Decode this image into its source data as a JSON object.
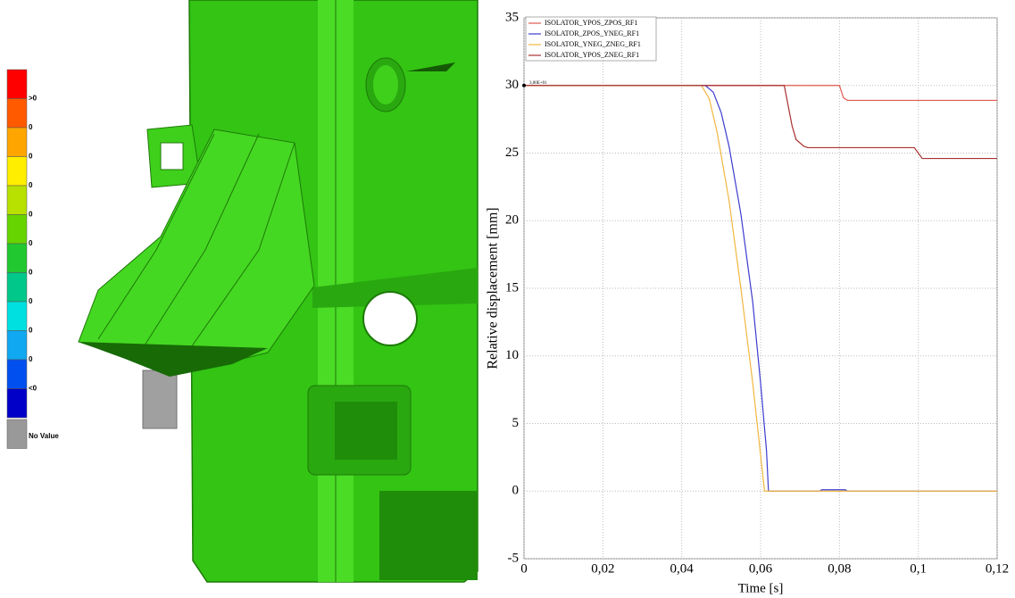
{
  "colorbar": {
    "colors": [
      "#ff0000",
      "#ff5a00",
      "#ffa500",
      "#ffee00",
      "#b8e000",
      "#66d400",
      "#22c830",
      "#00c88a",
      "#00e0e0",
      "#10a8f0",
      "#0050f0",
      "#0000c8",
      "#999999"
    ],
    "labels": [
      ">0",
      "0",
      "0",
      "0",
      "0",
      "0",
      "0",
      "0",
      "0",
      "0",
      "<0",
      "No Value"
    ]
  },
  "chart_data": {
    "type": "line",
    "xlabel": "Time [s]",
    "ylabel": "Relative displacement [mm]",
    "xlim": [
      0,
      0.12
    ],
    "ylim": [
      -5,
      35
    ],
    "xticks": [
      0,
      {
        "value": 0.02,
        "label": "0,02"
      },
      {
        "value": 0.04,
        "label": "0,04"
      },
      {
        "value": 0.06,
        "label": "0,06"
      },
      {
        "value": 0.08,
        "label": "0,08"
      },
      {
        "value": 0.1,
        "label": "0,1"
      },
      {
        "value": 0.12,
        "label": "0,12"
      }
    ],
    "yticks": [
      -5,
      0,
      5,
      10,
      15,
      20,
      25,
      30,
      35
    ],
    "grid": true,
    "legend": "top-left",
    "annotations": [
      {
        "x": 0,
        "y": 30,
        "text": "3,00E+01"
      }
    ],
    "series": [
      {
        "name": "ISOLATOR_YPOS_ZPOS_RF1",
        "color": "#e05a50",
        "x": [
          0,
          0.08,
          0.081,
          0.082,
          0.12
        ],
        "values": [
          30,
          30,
          29.1,
          28.9,
          28.9
        ]
      },
      {
        "name": "ISOLATOR_ZPOS_YNEG_RF1",
        "color": "#3c3cd0",
        "x": [
          0,
          0.046,
          0.048,
          0.05,
          0.052,
          0.055,
          0.058,
          0.06,
          0.0615,
          0.062,
          0.075,
          0.0755,
          0.0815,
          0.082,
          0.12
        ],
        "values": [
          30,
          30,
          29.5,
          28,
          25.5,
          20.5,
          14,
          8,
          3,
          0,
          0,
          0.1,
          0.1,
          0,
          0
        ]
      },
      {
        "name": "ISOLATOR_YNEG_ZNEG_RF1",
        "color": "#f2b640",
        "x": [
          0,
          0.045,
          0.047,
          0.049,
          0.052,
          0.055,
          0.058,
          0.061,
          0.12
        ],
        "values": [
          30,
          30,
          29,
          26.5,
          21.5,
          15,
          8,
          0,
          0
        ]
      },
      {
        "name": "ISOLATOR_YPOS_ZNEG_RF1",
        "color": "#a83030",
        "x": [
          0,
          0.066,
          0.067,
          0.068,
          0.069,
          0.071,
          0.072,
          0.099,
          0.1,
          0.101,
          0.12
        ],
        "values": [
          30,
          30,
          28.5,
          27,
          26,
          25.5,
          25.4,
          25.4,
          25,
          24.6,
          24.6
        ]
      }
    ]
  }
}
